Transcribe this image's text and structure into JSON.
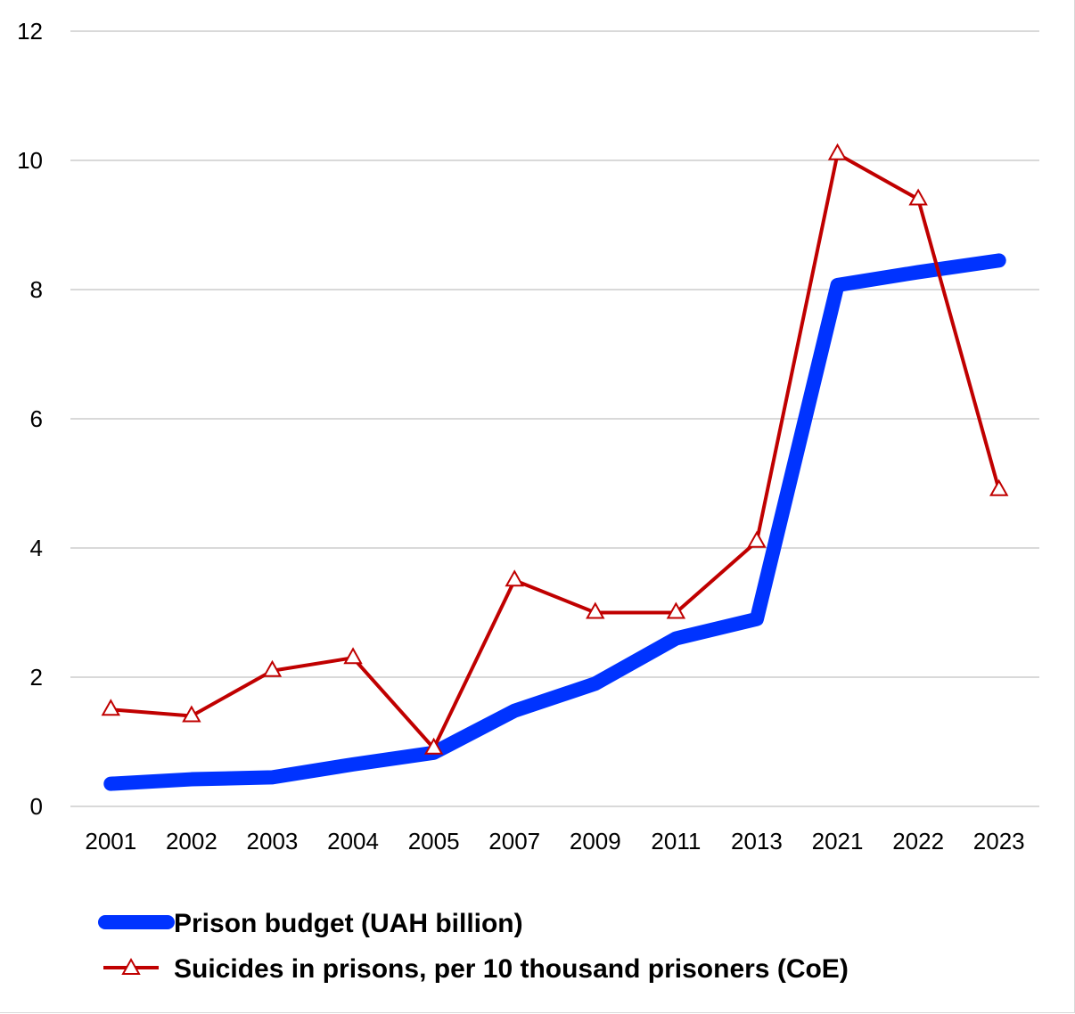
{
  "chart_data": {
    "type": "line",
    "title": "",
    "xlabel": "",
    "ylabel": "",
    "categories": [
      "2001",
      "2002",
      "2003",
      "2004",
      "2005",
      "2007",
      "2009",
      "2011",
      "2013",
      "2021",
      "2022",
      "2023"
    ],
    "ylim": [
      0,
      12
    ],
    "yticks": [
      0,
      2,
      4,
      6,
      8,
      10,
      12
    ],
    "ytick_labels": [
      "0",
      "2",
      "4",
      "6",
      "8",
      "10",
      "12"
    ],
    "grid": "horizontal",
    "legend_position": "bottom",
    "series": [
      {
        "name": "Prison budget (UAH billion)",
        "color": "#0033ff",
        "marker": "none",
        "values": [
          0.35,
          0.42,
          0.45,
          0.65,
          0.83,
          1.48,
          1.9,
          2.6,
          2.9,
          8.07,
          8.27,
          8.45
        ]
      },
      {
        "name": "Suicides in prisons, per 10 thousand prisoners (CoE)",
        "color": "#c00000",
        "marker": "triangle-open",
        "values": [
          1.5,
          1.4,
          2.1,
          2.3,
          0.9,
          3.5,
          3.0,
          3.0,
          4.1,
          10.1,
          9.4,
          4.9
        ]
      }
    ]
  }
}
